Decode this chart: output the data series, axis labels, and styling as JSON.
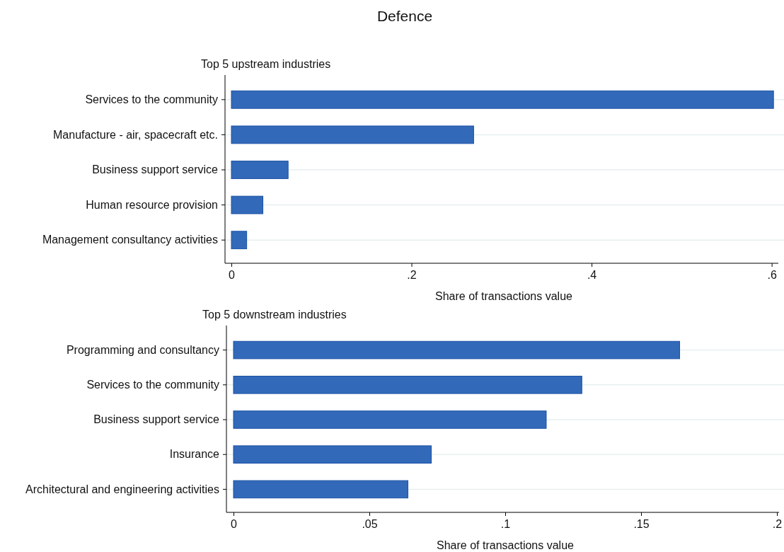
{
  "chart_data": [
    {
      "type": "bar",
      "orientation": "horizontal",
      "title": "Defence",
      "subtitle": "Top 5 upstream industries",
      "xlabel": "Share of transactions value",
      "categories": [
        "Services to the community",
        "Manufacture - air, spacecraft etc.",
        "Business support service",
        "Human resource provision",
        "Management consultancy activities"
      ],
      "values": [
        0.602,
        0.269,
        0.063,
        0.035,
        0.017
      ],
      "color": "#326ab9",
      "xlim": [
        0,
        0.605
      ],
      "xticks": [
        {
          "value": 0,
          "label": "0"
        },
        {
          "value": 0.2,
          "label": ".2"
        },
        {
          "value": 0.4,
          "label": ".4"
        },
        {
          "value": 0.6,
          "label": ".6"
        }
      ],
      "grid": "y"
    },
    {
      "type": "bar",
      "orientation": "horizontal",
      "subtitle": "Top 5 downstream industries",
      "xlabel": "Share of transactions value",
      "categories": [
        "Programming and consultancy",
        "Services to the community",
        "Business support service",
        "Insurance",
        "Architectural and engineering activities"
      ],
      "values": [
        0.1642,
        0.1282,
        0.1151,
        0.0728,
        0.0642
      ],
      "color": "#326ab9",
      "xlim": [
        0,
        0.2
      ],
      "xticks": [
        {
          "value": 0,
          "label": "0"
        },
        {
          "value": 0.05,
          "label": ".05"
        },
        {
          "value": 0.1,
          "label": ".1"
        },
        {
          "value": 0.15,
          "label": ".15"
        },
        {
          "value": 0.2,
          "label": ".2"
        }
      ],
      "grid": "y"
    }
  ]
}
